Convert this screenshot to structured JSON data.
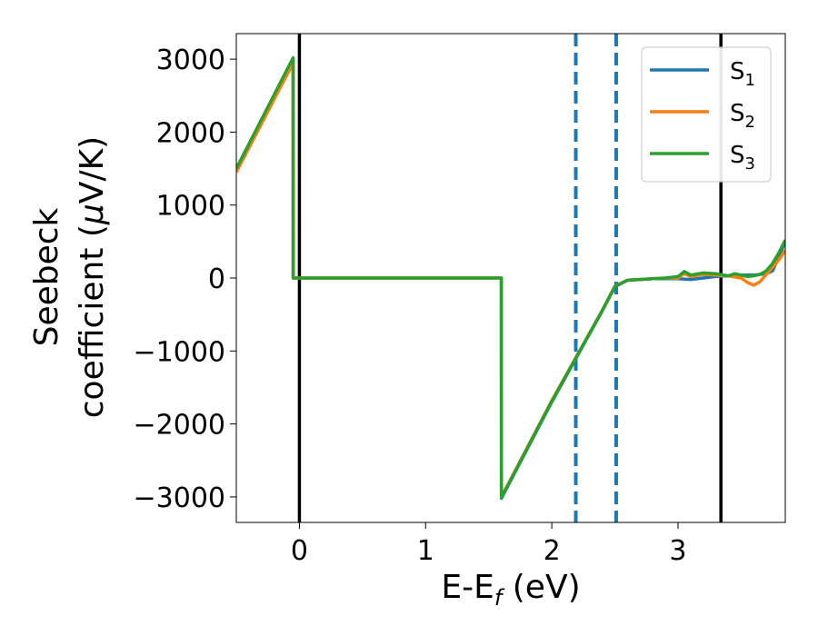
{
  "chart_data": {
    "type": "line",
    "title": "",
    "xlabel": "E-E",
    "xlabel_subscript": "f",
    "xlabel_unit": " (eV)",
    "ylabel_line1": "Seebeck",
    "ylabel_line2_prefix": "coefficient  (",
    "ylabel_mu": "μ",
    "ylabel_line2_suffix": "V/K)",
    "xlim": [
      -0.5,
      3.85
    ],
    "ylim": [
      -3350,
      3350
    ],
    "xticks": [
      0,
      1,
      2,
      3
    ],
    "xtick_labels": [
      "0",
      "1",
      "2",
      "3"
    ],
    "yticks": [
      3000,
      2000,
      1000,
      0,
      -1000,
      -2000,
      -3000
    ],
    "ytick_labels": [
      "3000",
      "2000",
      "1000",
      "0",
      "−1000",
      "−2000",
      "−3000"
    ],
    "grid": false,
    "legend_position": "top-right",
    "vertical_lines": [
      {
        "x": 0.0,
        "style": "solid",
        "color": "#000000"
      },
      {
        "x": 3.34,
        "style": "solid",
        "color": "#000000"
      },
      {
        "x": 2.19,
        "style": "dashed",
        "color": "#1f77b4"
      },
      {
        "x": 2.51,
        "style": "dashed",
        "color": "#1f77b4"
      }
    ],
    "series": [
      {
        "name": "S",
        "name_subscript": "1",
        "color": "#1f77b4",
        "x": [
          -0.5,
          -0.05,
          -0.049,
          1.6,
          1.601,
          2.0,
          2.4,
          2.5,
          2.6,
          2.7,
          2.8,
          2.9,
          3.0,
          3.1,
          3.2,
          3.3,
          3.4,
          3.5,
          3.55,
          3.6,
          3.65,
          3.7,
          3.75,
          3.8,
          3.85
        ],
        "y": [
          1500,
          3000,
          0,
          0,
          -3020,
          -1700,
          -450,
          -120,
          -30,
          -20,
          -10,
          -10,
          -10,
          -20,
          0,
          20,
          30,
          40,
          40,
          40,
          50,
          60,
          100,
          300,
          500
        ]
      },
      {
        "name": "S",
        "name_subscript": "2",
        "color": "#ff7f0e",
        "x": [
          -0.5,
          -0.05,
          -0.049,
          1.6,
          1.601,
          2.0,
          2.4,
          2.5,
          2.6,
          2.7,
          2.8,
          2.9,
          3.0,
          3.05,
          3.1,
          3.2,
          3.3,
          3.4,
          3.5,
          3.55,
          3.6,
          3.65,
          3.7,
          3.75,
          3.8,
          3.85
        ],
        "y": [
          1450,
          2950,
          0,
          0,
          -3000,
          -1680,
          -440,
          -110,
          -30,
          -20,
          -10,
          0,
          0,
          60,
          20,
          50,
          40,
          30,
          0,
          -60,
          -100,
          -50,
          50,
          150,
          250,
          380
        ]
      },
      {
        "name": "S",
        "name_subscript": "3",
        "color": "#2ca02c",
        "x": [
          -0.5,
          -0.05,
          -0.049,
          1.6,
          1.601,
          2.0,
          2.4,
          2.5,
          2.6,
          2.7,
          2.8,
          2.9,
          3.0,
          3.05,
          3.1,
          3.2,
          3.3,
          3.4,
          3.45,
          3.5,
          3.55,
          3.6,
          3.65,
          3.7,
          3.75,
          3.8,
          3.85
        ],
        "y": [
          1500,
          3020,
          0,
          0,
          -3010,
          -1690,
          -445,
          -115,
          -30,
          -20,
          -10,
          0,
          20,
          90,
          40,
          70,
          60,
          30,
          60,
          40,
          20,
          30,
          50,
          100,
          200,
          350,
          520
        ]
      }
    ]
  }
}
